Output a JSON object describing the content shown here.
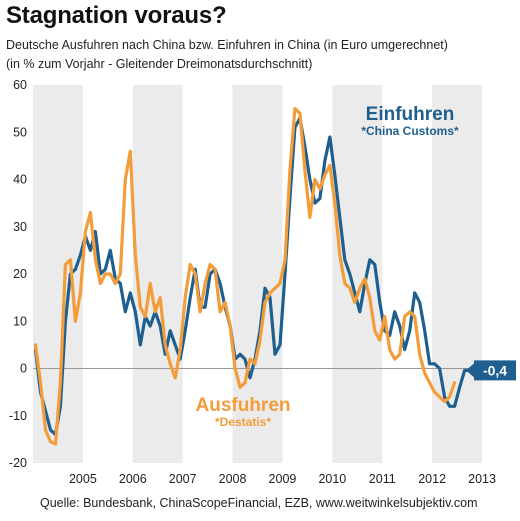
{
  "title": "Stagnation voraus?",
  "subtitle_line1": "Deutsche Ausfuhren nach China bzw. Einfuhren in China (in Euro umgerechnet)",
  "subtitle_line2": "(in % zum Vorjahr -  Gleitender Dreimonatsdurchschnitt)",
  "source": "Quelle: Bundesbank, ChinaScopeFinancial, EZB, www.weitwinkelsubjektiv.com",
  "colors": {
    "einfuhren": "#1f5f8f",
    "ausfuhren": "#f39c3a",
    "band": "#ebebeb",
    "zero_line": "#999999"
  },
  "chart_data": {
    "type": "line",
    "ylim": [
      -20,
      60
    ],
    "yticks": [
      "60",
      "50",
      "40",
      "30",
      "20",
      "10",
      "0",
      "-10",
      "-20"
    ],
    "yticks_values": [
      60,
      50,
      40,
      30,
      20,
      10,
      0,
      -10,
      -20
    ],
    "xlim": [
      2004.5,
      2013.8
    ],
    "year_ticks": [
      "2005",
      "2006",
      "2007",
      "2008",
      "2009",
      "2010",
      "2011",
      "2012",
      "2013"
    ],
    "year_ticks_values": [
      2005,
      2006,
      2007,
      2008,
      2009,
      2010,
      2011,
      2012,
      2013
    ],
    "shaded_years": [
      2004.5,
      2006.5,
      2008.5,
      2010.5,
      2012.5
    ],
    "grid": false,
    "end_label": "-0,4",
    "series": [
      {
        "name": "Einfuhren",
        "source_label": "*China Customs*",
        "points": [
          [
            2004.55,
            4
          ],
          [
            2004.65,
            -5
          ],
          [
            2004.75,
            -9
          ],
          [
            2004.85,
            -13
          ],
          [
            2004.95,
            -14
          ],
          [
            2005.05,
            -8
          ],
          [
            2005.15,
            10
          ],
          [
            2005.25,
            20
          ],
          [
            2005.35,
            21
          ],
          [
            2005.45,
            24
          ],
          [
            2005.55,
            28
          ],
          [
            2005.65,
            25
          ],
          [
            2005.75,
            29
          ],
          [
            2005.85,
            20
          ],
          [
            2005.95,
            21
          ],
          [
            2006.05,
            25
          ],
          [
            2006.15,
            19
          ],
          [
            2006.25,
            18
          ],
          [
            2006.35,
            12
          ],
          [
            2006.45,
            16
          ],
          [
            2006.55,
            12
          ],
          [
            2006.65,
            5
          ],
          [
            2006.75,
            11
          ],
          [
            2006.85,
            9
          ],
          [
            2006.95,
            12
          ],
          [
            2007.05,
            9
          ],
          [
            2007.15,
            3
          ],
          [
            2007.25,
            8
          ],
          [
            2007.35,
            5
          ],
          [
            2007.45,
            2
          ],
          [
            2007.55,
            8
          ],
          [
            2007.65,
            15
          ],
          [
            2007.75,
            21
          ],
          [
            2007.85,
            13
          ],
          [
            2007.95,
            13
          ],
          [
            2008.05,
            20
          ],
          [
            2008.15,
            21
          ],
          [
            2008.25,
            18
          ],
          [
            2008.35,
            13
          ],
          [
            2008.45,
            9
          ],
          [
            2008.55,
            2
          ],
          [
            2008.65,
            3
          ],
          [
            2008.75,
            2
          ],
          [
            2008.85,
            -2
          ],
          [
            2008.95,
            2
          ],
          [
            2009.05,
            8
          ],
          [
            2009.15,
            17
          ],
          [
            2009.25,
            15
          ],
          [
            2009.35,
            3
          ],
          [
            2009.45,
            5
          ],
          [
            2009.55,
            20
          ],
          [
            2009.65,
            36
          ],
          [
            2009.75,
            51
          ],
          [
            2009.85,
            53
          ],
          [
            2009.95,
            47
          ],
          [
            2010.05,
            40
          ],
          [
            2010.15,
            35
          ],
          [
            2010.25,
            36
          ],
          [
            2010.35,
            44
          ],
          [
            2010.45,
            49
          ],
          [
            2010.55,
            41
          ],
          [
            2010.65,
            32
          ],
          [
            2010.75,
            23
          ],
          [
            2010.85,
            20
          ],
          [
            2010.95,
            16
          ],
          [
            2011.05,
            12
          ],
          [
            2011.15,
            18
          ],
          [
            2011.25,
            23
          ],
          [
            2011.35,
            22
          ],
          [
            2011.45,
            14
          ],
          [
            2011.55,
            8
          ],
          [
            2011.65,
            7
          ],
          [
            2011.75,
            12
          ],
          [
            2011.85,
            9
          ],
          [
            2011.95,
            4
          ],
          [
            2012.05,
            8
          ],
          [
            2012.15,
            16
          ],
          [
            2012.25,
            14
          ],
          [
            2012.35,
            8
          ],
          [
            2012.45,
            1
          ],
          [
            2012.55,
            1
          ],
          [
            2012.65,
            0
          ],
          [
            2012.75,
            -6
          ],
          [
            2012.85,
            -8
          ],
          [
            2012.95,
            -8
          ],
          [
            2013.05,
            -4
          ],
          [
            2013.15,
            -0.4
          ],
          [
            2013.25,
            -0.4
          ]
        ]
      },
      {
        "name": "Ausfuhren",
        "source_label": "*Destatis*",
        "points": [
          [
            2004.55,
            5
          ],
          [
            2004.65,
            -3
          ],
          [
            2004.75,
            -13
          ],
          [
            2004.85,
            -15.5
          ],
          [
            2004.95,
            -16
          ],
          [
            2005.05,
            -3
          ],
          [
            2005.15,
            22
          ],
          [
            2005.25,
            23
          ],
          [
            2005.35,
            10
          ],
          [
            2005.45,
            16
          ],
          [
            2005.55,
            29
          ],
          [
            2005.65,
            33
          ],
          [
            2005.75,
            23
          ],
          [
            2005.85,
            18
          ],
          [
            2005.95,
            20
          ],
          [
            2006.05,
            20
          ],
          [
            2006.15,
            18
          ],
          [
            2006.25,
            20
          ],
          [
            2006.35,
            40
          ],
          [
            2006.45,
            46
          ],
          [
            2006.55,
            24
          ],
          [
            2006.65,
            13
          ],
          [
            2006.75,
            11
          ],
          [
            2006.85,
            18
          ],
          [
            2006.95,
            12
          ],
          [
            2007.05,
            15
          ],
          [
            2007.15,
            5
          ],
          [
            2007.25,
            1
          ],
          [
            2007.35,
            -2
          ],
          [
            2007.45,
            4
          ],
          [
            2007.55,
            15
          ],
          [
            2007.65,
            22
          ],
          [
            2007.75,
            20
          ],
          [
            2007.85,
            12
          ],
          [
            2007.95,
            18
          ],
          [
            2008.05,
            22
          ],
          [
            2008.15,
            21
          ],
          [
            2008.25,
            12
          ],
          [
            2008.35,
            14
          ],
          [
            2008.45,
            9
          ],
          [
            2008.55,
            0
          ],
          [
            2008.65,
            -4
          ],
          [
            2008.75,
            -3
          ],
          [
            2008.85,
            2
          ],
          [
            2008.95,
            1
          ],
          [
            2009.05,
            6
          ],
          [
            2009.15,
            14
          ],
          [
            2009.25,
            16
          ],
          [
            2009.35,
            17
          ],
          [
            2009.45,
            18
          ],
          [
            2009.55,
            23
          ],
          [
            2009.65,
            42
          ],
          [
            2009.75,
            55
          ],
          [
            2009.85,
            54
          ],
          [
            2009.95,
            42
          ],
          [
            2010.05,
            32
          ],
          [
            2010.15,
            40
          ],
          [
            2010.25,
            38
          ],
          [
            2010.35,
            41
          ],
          [
            2010.45,
            43
          ],
          [
            2010.55,
            35
          ],
          [
            2010.65,
            24
          ],
          [
            2010.75,
            18
          ],
          [
            2010.85,
            17
          ],
          [
            2010.95,
            14
          ],
          [
            2011.05,
            17
          ],
          [
            2011.15,
            19
          ],
          [
            2011.25,
            15
          ],
          [
            2011.35,
            8
          ],
          [
            2011.45,
            6
          ],
          [
            2011.55,
            11
          ],
          [
            2011.65,
            4
          ],
          [
            2011.75,
            2
          ],
          [
            2011.85,
            3
          ],
          [
            2011.95,
            11
          ],
          [
            2012.05,
            12
          ],
          [
            2012.15,
            11
          ],
          [
            2012.25,
            3
          ],
          [
            2012.35,
            -1
          ],
          [
            2012.45,
            -3
          ],
          [
            2012.55,
            -5
          ],
          [
            2012.65,
            -6
          ],
          [
            2012.75,
            -7
          ],
          [
            2012.85,
            -6
          ],
          [
            2012.95,
            -3
          ]
        ]
      }
    ]
  }
}
